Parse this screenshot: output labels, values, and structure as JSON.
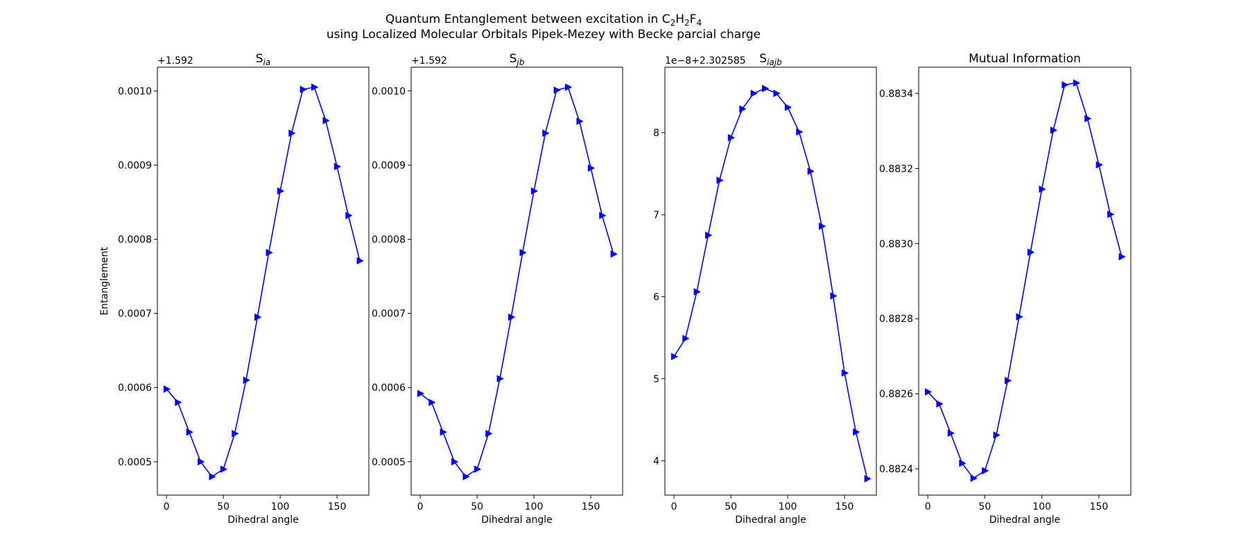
{
  "figure": {
    "title_line1_prefix": "Quantum Entanglement between excitation in C",
    "title_line1_sub1": "2",
    "title_line1_mid1": "H",
    "title_line1_sub2": "2",
    "title_line1_mid2": "F",
    "title_line1_sub3": "4",
    "title_line2": "using Localized Molecular Orbitals Pipek-Mezey with Becke parcial charge"
  },
  "colors": {
    "series": "#0000ff",
    "axes": "#000000",
    "background": "#ffffff"
  },
  "chart_data": [
    {
      "type": "line",
      "title_main": "S",
      "title_sub": "ia",
      "xlabel": "Dihedral angle",
      "ylabel": "Entanglement",
      "offset_text": "+1.592",
      "xlim": [
        -8,
        178
      ],
      "ylim": [
        0.000455,
        0.001032
      ],
      "xticks": [
        0,
        50,
        100,
        150
      ],
      "yticks": [
        0.0005,
        0.0006,
        0.0007,
        0.0008,
        0.0009,
        0.001
      ],
      "ytick_labels": [
        "0.0005",
        "0.0006",
        "0.0007",
        "0.0008",
        "0.0009",
        "0.0010"
      ],
      "x": [
        0,
        10,
        20,
        30,
        40,
        50,
        60,
        70,
        80,
        90,
        100,
        110,
        120,
        130,
        140,
        150,
        160,
        170
      ],
      "values": [
        0.000598,
        0.00058,
        0.00054,
        0.0005,
        0.00048,
        0.00049,
        0.000538,
        0.00061,
        0.000695,
        0.000782,
        0.000865,
        0.000943,
        0.001002,
        0.001005,
        0.00096,
        0.000898,
        0.000832,
        0.000771
      ],
      "marker": "triangle-right"
    },
    {
      "type": "line",
      "title_main": "S",
      "title_sub": "jb",
      "xlabel": "Dihedral angle",
      "ylabel": "",
      "offset_text": "+1.592",
      "xlim": [
        -8,
        178
      ],
      "ylim": [
        0.000455,
        0.001032
      ],
      "xticks": [
        0,
        50,
        100,
        150
      ],
      "yticks": [
        0.0005,
        0.0006,
        0.0007,
        0.0008,
        0.0009,
        0.001
      ],
      "ytick_labels": [
        "0.0005",
        "0.0006",
        "0.0007",
        "0.0008",
        "0.0009",
        "0.0010"
      ],
      "x": [
        0,
        10,
        20,
        30,
        40,
        50,
        60,
        70,
        80,
        90,
        100,
        110,
        120,
        130,
        140,
        150,
        160,
        170
      ],
      "values": [
        0.000592,
        0.00058,
        0.00054,
        0.0005,
        0.00048,
        0.00049,
        0.000538,
        0.000612,
        0.000695,
        0.000782,
        0.000865,
        0.000943,
        0.001001,
        0.001005,
        0.000959,
        0.000896,
        0.000832,
        0.00078
      ],
      "marker": "triangle-right"
    },
    {
      "type": "line",
      "title_main": "S",
      "title_sub": "iajb",
      "xlabel": "Dihedral angle",
      "ylabel": "",
      "offset_text": "1e−8+2.302585",
      "xlim": [
        -8,
        178
      ],
      "ylim": [
        3.58,
        8.8
      ],
      "xticks": [
        0,
        50,
        100,
        150
      ],
      "yticks": [
        4,
        5,
        6,
        7,
        8
      ],
      "ytick_labels": [
        "4",
        "5",
        "6",
        "7",
        "8"
      ],
      "x": [
        0,
        10,
        20,
        30,
        40,
        50,
        60,
        70,
        80,
        90,
        100,
        110,
        120,
        130,
        140,
        150,
        160,
        170
      ],
      "values": [
        5.27,
        5.49,
        6.06,
        6.75,
        7.42,
        7.94,
        8.29,
        8.48,
        8.54,
        8.48,
        8.31,
        8.01,
        7.53,
        6.86,
        6.01,
        5.07,
        4.35,
        3.78
      ],
      "marker": "triangle-right"
    },
    {
      "type": "line",
      "title_main": "Mutual Information",
      "title_sub": "",
      "xlabel": "Dihedral angle",
      "ylabel": "",
      "offset_text": "",
      "xlim": [
        -8,
        178
      ],
      "ylim": [
        0.88233,
        0.88347
      ],
      "xticks": [
        0,
        50,
        100,
        150
      ],
      "yticks": [
        0.8824,
        0.8826,
        0.8828,
        0.883,
        0.8832,
        0.8834
      ],
      "ytick_labels": [
        "0.8824",
        "0.8826",
        "0.8828",
        "0.8830",
        "0.8832",
        "0.8834"
      ],
      "x": [
        0,
        10,
        20,
        30,
        40,
        50,
        60,
        70,
        80,
        90,
        100,
        110,
        120,
        130,
        140,
        150,
        160,
        170
      ],
      "values": [
        0.882605,
        0.882573,
        0.882495,
        0.882415,
        0.882375,
        0.882395,
        0.88249,
        0.882635,
        0.882805,
        0.882977,
        0.883145,
        0.883302,
        0.883423,
        0.883428,
        0.883333,
        0.88321,
        0.883078,
        0.882965
      ],
      "marker": "triangle-right"
    }
  ]
}
